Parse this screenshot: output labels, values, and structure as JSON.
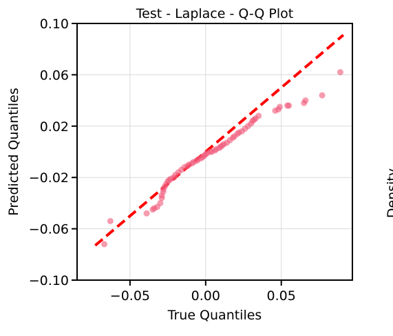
{
  "chart_data": {
    "type": "scatter",
    "title": "Test - Laplace - Q-Q Plot",
    "xlabel": "True Quantiles",
    "ylabel": "Predicted Quantiles",
    "xlim": [
      -0.085,
      0.097
    ],
    "ylim": [
      -0.1,
      0.1
    ],
    "xticks": [
      -0.05,
      0.0,
      0.05
    ],
    "xtick_labels": [
      "−0.05",
      "0.00",
      "0.05"
    ],
    "yticks": [
      -0.1,
      -0.06,
      -0.02,
      0.02,
      0.06,
      0.1
    ],
    "ytick_labels": [
      "−0.10",
      "−0.06",
      "−0.02",
      "0.02",
      "0.06",
      "0.10"
    ],
    "grid": true,
    "point_color": "#f0587a",
    "line_color": "#ff0000",
    "reference_line": {
      "x": [
        -0.073,
        0.091
      ],
      "y": [
        -0.073,
        0.091
      ],
      "style": "dashed"
    },
    "points": [
      {
        "x": -0.067,
        "y": -0.072
      },
      {
        "x": -0.063,
        "y": -0.054
      },
      {
        "x": -0.039,
        "y": -0.048
      },
      {
        "x": -0.035,
        "y": -0.045
      },
      {
        "x": -0.034,
        "y": -0.044
      },
      {
        "x": -0.032,
        "y": -0.043
      },
      {
        "x": -0.03,
        "y": -0.04
      },
      {
        "x": -0.029,
        "y": -0.036
      },
      {
        "x": -0.029,
        "y": -0.034
      },
      {
        "x": -0.028,
        "y": -0.031
      },
      {
        "x": -0.028,
        "y": -0.029
      },
      {
        "x": -0.027,
        "y": -0.027
      },
      {
        "x": -0.026,
        "y": -0.025
      },
      {
        "x": -0.025,
        "y": -0.023
      },
      {
        "x": -0.024,
        "y": -0.022
      },
      {
        "x": -0.023,
        "y": -0.021
      },
      {
        "x": -0.021,
        "y": -0.02
      },
      {
        "x": -0.02,
        "y": -0.018
      },
      {
        "x": -0.018,
        "y": -0.016
      },
      {
        "x": -0.016,
        "y": -0.014
      },
      {
        "x": -0.014,
        "y": -0.012
      },
      {
        "x": -0.012,
        "y": -0.011
      },
      {
        "x": -0.011,
        "y": -0.01
      },
      {
        "x": -0.009,
        "y": -0.009
      },
      {
        "x": -0.008,
        "y": -0.008
      },
      {
        "x": -0.006,
        "y": -0.007
      },
      {
        "x": -0.005,
        "y": -0.006
      },
      {
        "x": -0.003,
        "y": -0.005
      },
      {
        "x": -0.002,
        "y": -0.004
      },
      {
        "x": -0.001,
        "y": -0.003
      },
      {
        "x": 0.0,
        "y": -0.002
      },
      {
        "x": 0.001,
        "y": -0.001
      },
      {
        "x": 0.003,
        "y": 0.0
      },
      {
        "x": 0.004,
        "y": 0.0
      },
      {
        "x": 0.006,
        "y": 0.001
      },
      {
        "x": 0.007,
        "y": 0.002
      },
      {
        "x": 0.009,
        "y": 0.003
      },
      {
        "x": 0.01,
        "y": 0.004
      },
      {
        "x": 0.011,
        "y": 0.005
      },
      {
        "x": 0.012,
        "y": 0.006
      },
      {
        "x": 0.014,
        "y": 0.007
      },
      {
        "x": 0.016,
        "y": 0.009
      },
      {
        "x": 0.018,
        "y": 0.011
      },
      {
        "x": 0.019,
        "y": 0.012
      },
      {
        "x": 0.021,
        "y": 0.014
      },
      {
        "x": 0.022,
        "y": 0.015
      },
      {
        "x": 0.024,
        "y": 0.016
      },
      {
        "x": 0.026,
        "y": 0.018
      },
      {
        "x": 0.028,
        "y": 0.02
      },
      {
        "x": 0.03,
        "y": 0.022
      },
      {
        "x": 0.031,
        "y": 0.024
      },
      {
        "x": 0.032,
        "y": 0.025
      },
      {
        "x": 0.033,
        "y": 0.026
      },
      {
        "x": 0.035,
        "y": 0.028
      },
      {
        "x": 0.046,
        "y": 0.032
      },
      {
        "x": 0.048,
        "y": 0.033
      },
      {
        "x": 0.049,
        "y": 0.035
      },
      {
        "x": 0.054,
        "y": 0.036
      },
      {
        "x": 0.055,
        "y": 0.036
      },
      {
        "x": 0.065,
        "y": 0.038
      },
      {
        "x": 0.066,
        "y": 0.04
      },
      {
        "x": 0.077,
        "y": 0.044
      },
      {
        "x": 0.089,
        "y": 0.062
      }
    ]
  },
  "neighbor_partial_label": "Density"
}
